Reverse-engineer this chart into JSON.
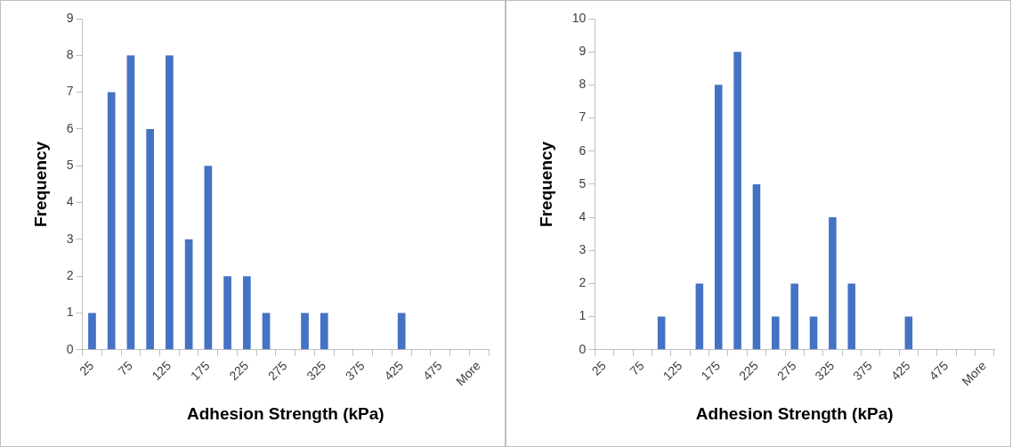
{
  "chart_data": [
    {
      "type": "bar",
      "xlabel": "Adhesion Strength (kPa)",
      "ylabel": "Frequency",
      "categories": [
        "25",
        null,
        "75",
        null,
        "125",
        null,
        "175",
        null,
        "225",
        null,
        "275",
        null,
        "325",
        null,
        "375",
        null,
        "425",
        null,
        "475",
        null,
        "More"
      ],
      "values": [
        1,
        7,
        8,
        6,
        8,
        3,
        5,
        2,
        2,
        1,
        0,
        1,
        1,
        0,
        0,
        0,
        1,
        0,
        0,
        0,
        0
      ],
      "color": "#4472c4",
      "ylim": [
        0,
        9
      ],
      "yticks": [
        0,
        1,
        2,
        3,
        4,
        5,
        6,
        7,
        8,
        9
      ],
      "grid": false,
      "legend": false
    },
    {
      "type": "bar",
      "xlabel": "Adhesion Strength (kPa)",
      "ylabel": "Frequency",
      "categories": [
        "25",
        null,
        "75",
        null,
        "125",
        null,
        "175",
        null,
        "225",
        null,
        "275",
        null,
        "325",
        null,
        "375",
        null,
        "425",
        null,
        "475",
        null,
        "More"
      ],
      "values": [
        0,
        0,
        0,
        1,
        0,
        2,
        8,
        9,
        5,
        1,
        2,
        1,
        4,
        2,
        0,
        0,
        1,
        0,
        0,
        0,
        0
      ],
      "color": "#4472c4",
      "ylim": [
        0,
        10
      ],
      "yticks": [
        0,
        1,
        2,
        3,
        4,
        5,
        6,
        7,
        8,
        9,
        10
      ],
      "grid": false,
      "legend": false
    }
  ]
}
